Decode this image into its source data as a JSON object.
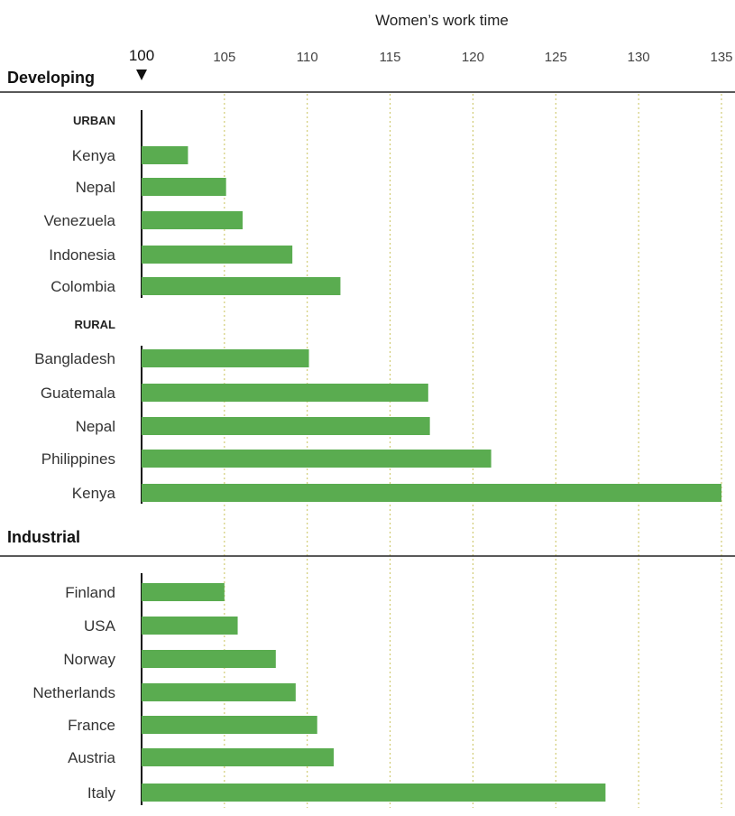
{
  "chart_data": {
    "type": "bar",
    "orientation": "horizontal",
    "xlabel": "Women’s work time",
    "xlim": [
      100,
      135
    ],
    "xticks": [
      100,
      105,
      110,
      115,
      120,
      125,
      130,
      135
    ],
    "baseline": 100,
    "grid": true,
    "colors": {
      "bar": "#5aac50",
      "grid": "#c9c25a"
    },
    "sections": [
      {
        "name": "Developing",
        "groups": [
          {
            "name": "URBAN",
            "categories": [
              "Kenya",
              "Nepal",
              "Venezuela",
              "Indonesia",
              "Colombia"
            ],
            "values": [
              102.8,
              105.1,
              106.1,
              109.1,
              112
            ]
          },
          {
            "name": "RURAL",
            "categories": [
              "Bangladesh",
              "Guatemala",
              "Nepal",
              "Philippines",
              "Kenya"
            ],
            "values": [
              110.1,
              117.3,
              117.4,
              121.1,
              135
            ]
          }
        ]
      },
      {
        "name": "Industrial",
        "groups": [
          {
            "name": "",
            "categories": [
              "Finland",
              "USA",
              "Norway",
              "Netherlands",
              "France",
              "Austria",
              "Italy"
            ],
            "values": [
              105,
              105.8,
              108.1,
              109.3,
              110.6,
              111.6,
              128
            ]
          }
        ]
      }
    ]
  }
}
